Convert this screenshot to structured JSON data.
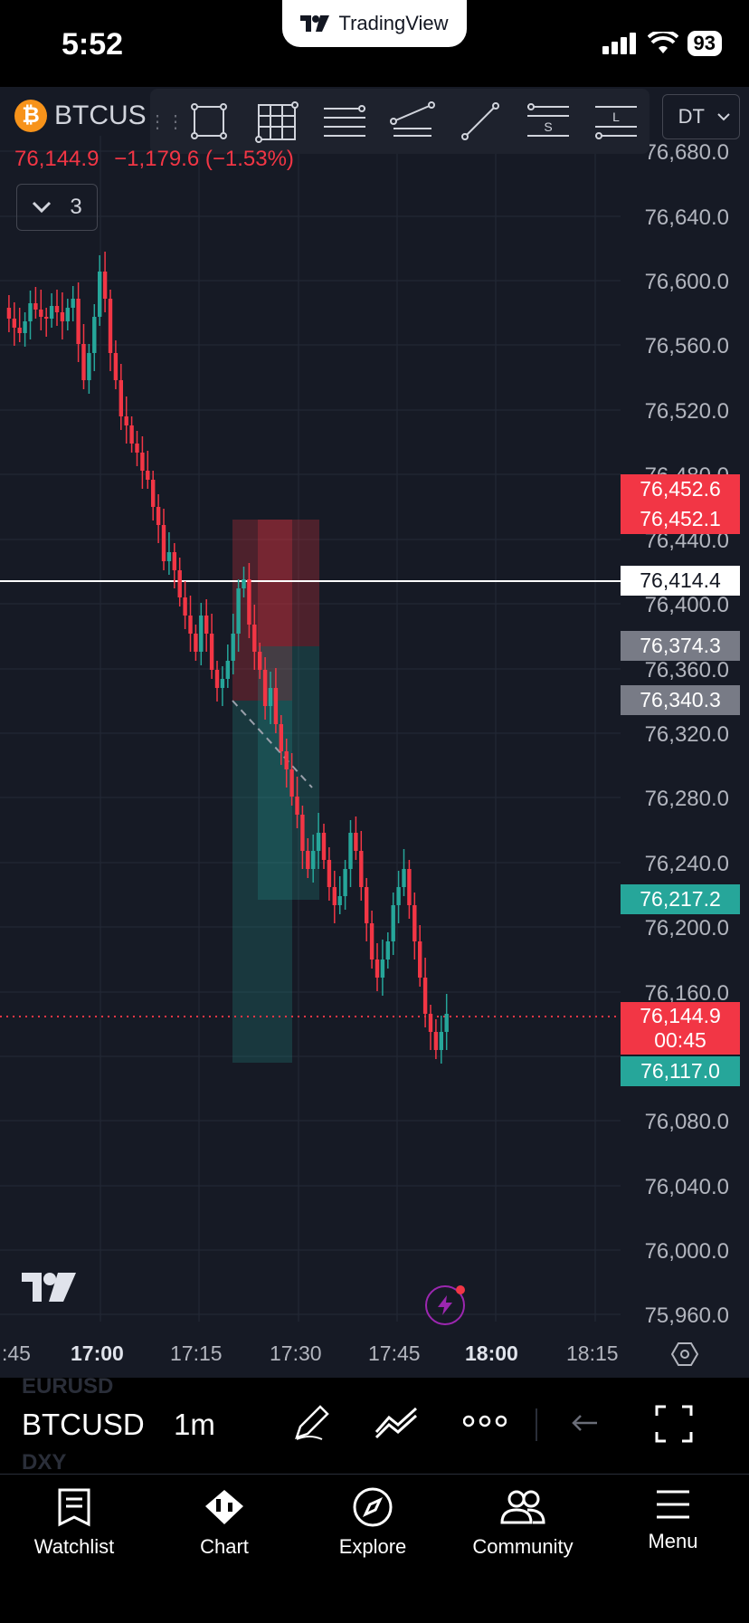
{
  "status_bar": {
    "time": "5:52",
    "battery": "93"
  },
  "app_pill": {
    "brand": "TradingView"
  },
  "header": {
    "symbol": "BTCUS",
    "currency": "DT",
    "last_price": "76,144.9",
    "change": "−1,179.6 (−1.53%)",
    "indicators_count": "3"
  },
  "drawing_tools": [
    {
      "icon": "rectangle-tool-icon"
    },
    {
      "icon": "fib-grid-tool-icon"
    },
    {
      "icon": "horizontal-lines-tool-icon"
    },
    {
      "icon": "trend-lines-tool-icon"
    },
    {
      "icon": "line-tool-icon"
    },
    {
      "icon": "short-position-tool-icon",
      "letter": "S"
    },
    {
      "icon": "long-position-tool-icon",
      "letter": "L"
    }
  ],
  "y_axis": [
    "76,680.0",
    "76,640.0",
    "76,600.0",
    "76,560.0",
    "76,520.0",
    "76,480.0",
    "76,440.0",
    "76,400.0",
    "76,360.0",
    "76,320.0",
    "76,280.0",
    "76,240.0",
    "76,200.0",
    "76,160.0",
    "76,080.0",
    "76,040.0",
    "76,000.0",
    "75,960.0"
  ],
  "price_tags": {
    "stop1": "76,452.6",
    "stop2": "76,452.1",
    "crosshair": "76,414.4",
    "entry1": "76,374.3",
    "entry2": "76,340.3",
    "target1": "76,217.2",
    "last": "76,144.9",
    "countdown": "00:45",
    "target2": "76,117.0"
  },
  "x_axis": [
    ":45",
    "17:00",
    "17:15",
    "17:30",
    "17:45",
    "18:00",
    "18:15"
  ],
  "bottom_toolbar": {
    "symbol": "BTCUSD",
    "interval": "1m",
    "ghost_top": "EURUSD",
    "ghost_bottom": "DXY"
  },
  "tabs": [
    "Watchlist",
    "Chart",
    "Explore",
    "Community",
    "Menu"
  ],
  "colors": {
    "up": "#26a69a",
    "down": "#f23645",
    "background": "#161a25",
    "neutral_tag": "#787b86"
  }
}
